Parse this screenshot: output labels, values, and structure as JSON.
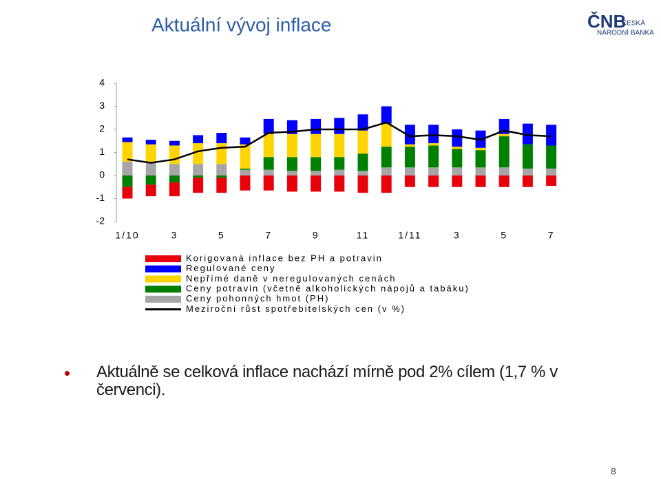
{
  "title": "Aktuální vývoj inflace",
  "logo": {
    "mark": "ČNB",
    "line1": "ČESKÁ",
    "line2": "NÁRODNÍ BANKA"
  },
  "bullet": "Aktuálně se celková inflace nachází mírně pod 2% cílem (1,7 % v červenci).",
  "page_number": "8",
  "chart_data": {
    "type": "bar",
    "stacked": true,
    "categories": [
      "1/10",
      null,
      "3",
      null,
      "5",
      null,
      "7",
      null,
      "9",
      null,
      "11",
      null,
      "1/11",
      null,
      "3",
      null,
      "5",
      null,
      "7"
    ],
    "ylim": [
      -2,
      4
    ],
    "yticks": [
      -2,
      -1,
      0,
      1,
      2,
      3,
      4
    ],
    "series": [
      {
        "name": "Korigovaná inflace bez PH a potravin",
        "color": "#e8000b",
        "values": [
          -0.5,
          -0.5,
          -0.6,
          -0.65,
          -0.65,
          -0.65,
          -0.65,
          -0.7,
          -0.7,
          -0.7,
          -0.75,
          -0.75,
          -0.5,
          -0.5,
          -0.5,
          -0.5,
          -0.5,
          -0.5,
          -0.45
        ]
      },
      {
        "name": "Regulované ceny",
        "color": "#0000ff",
        "values": [
          0.2,
          0.2,
          0.2,
          0.35,
          0.45,
          0.3,
          0.65,
          0.6,
          0.65,
          0.7,
          0.7,
          0.75,
          0.85,
          0.8,
          0.75,
          0.75,
          0.65,
          0.9,
          0.9
        ]
      },
      {
        "name": "Nepřímé daně v neregulovaných cenách",
        "color": "#ffd400",
        "values": [
          0.85,
          0.8,
          0.8,
          0.9,
          0.9,
          1.05,
          1.0,
          1.0,
          1.0,
          1.0,
          1.0,
          1.0,
          0.1,
          0.1,
          0.1,
          0.1,
          0.1,
          0,
          0
        ]
      },
      {
        "name": "Ceny potravin (včetně alkoholických nápojů a tabáku)",
        "color": "#008000",
        "values": [
          -0.5,
          -0.4,
          -0.3,
          -0.1,
          -0.1,
          0.05,
          0.55,
          0.6,
          0.6,
          0.55,
          0.75,
          0.9,
          0.9,
          0.95,
          0.8,
          0.75,
          1.35,
          1.05,
          1.0
        ]
      },
      {
        "name": "Ceny pohonných hmot (PH)",
        "color": "#a6a6a6",
        "values": [
          0.6,
          0.55,
          0.5,
          0.5,
          0.5,
          0.25,
          0.25,
          0.2,
          0.2,
          0.25,
          0.2,
          0.35,
          0.35,
          0.35,
          0.35,
          0.35,
          0.35,
          0.3,
          0.3
        ]
      },
      {
        "name": "Meziroční růst spotřebitelských cen (v %)",
        "color": "#000000",
        "type": "line",
        "values": [
          0.7,
          0.55,
          0.7,
          1.05,
          1.2,
          1.25,
          1.85,
          1.9,
          2.0,
          2.0,
          2.0,
          2.3,
          1.7,
          1.75,
          1.7,
          1.55,
          1.95,
          1.75,
          1.7
        ]
      }
    ]
  }
}
